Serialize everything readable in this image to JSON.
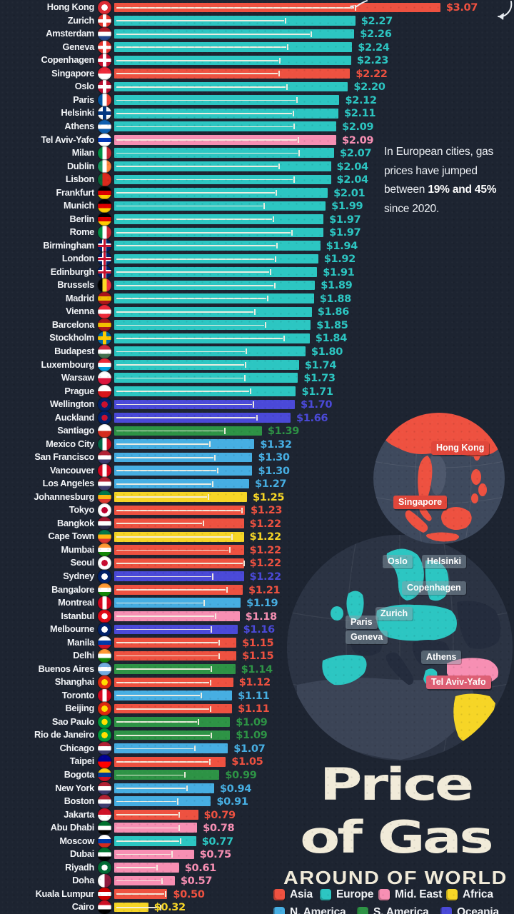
{
  "title": {
    "line1": "Price",
    "line2": "of Gas",
    "subtitle": "AROUND OF WORLD"
  },
  "note": {
    "normal1": "In European cities, gas prices have jumped between ",
    "bold1": "19% and 45%",
    "normal2": " since 2020."
  },
  "regions": {
    "Asia": "#ee5140",
    "Europe": "#2cc6c2",
    "Mid. East": "#f78fb3",
    "Africa": "#f6d526",
    "N. America": "#46aee2",
    "S. America": "#2d9345",
    "Oceania": "#4a49d8"
  },
  "legend": {
    "rows": [
      [
        "Asia",
        "Europe",
        "Mid. East",
        "Africa"
      ],
      [
        "N. America",
        "S. America",
        "Oceania"
      ]
    ]
  },
  "maps": {
    "asia": {
      "labels": {
        "hong_kong": "Hong Kong",
        "singapore": "Singapore"
      }
    },
    "europe": {
      "labels": {
        "oslo": "Oslo",
        "helsinki": "Helsinki",
        "copenhagen": "Copenhagen",
        "zurich": "Zurich",
        "paris": "Paris",
        "geneva": "Geneva",
        "athens": "Athens",
        "tel_aviv": "Tel Aviv-Yafo"
      }
    }
  },
  "chart_data": {
    "type": "bar",
    "orientation": "horizontal",
    "title": "Price of Gas Around of World",
    "currency_prefix": "$",
    "value_range": [
      0,
      3.07
    ],
    "cities": [
      {
        "n": "Hong Kong",
        "v": 3.07,
        "r": "Asia",
        "w": 0.74,
        "f": {
          "d": "dot",
          "c": [
            "#de2a33",
            "#ffffff"
          ]
        }
      },
      {
        "n": "Zurich",
        "v": 2.27,
        "r": "Europe",
        "w": 0.71,
        "f": {
          "d": "cross",
          "c": [
            "#e8352e",
            "#ffffff"
          ]
        }
      },
      {
        "n": "Amsterdam",
        "v": 2.26,
        "r": "Europe",
        "w": 0.82,
        "f": {
          "d": "h",
          "c": [
            "#ae1c28",
            "#ffffff",
            "#21468b"
          ]
        }
      },
      {
        "n": "Geneva",
        "v": 2.24,
        "r": "Europe",
        "w": 0.73,
        "f": {
          "d": "cross",
          "c": [
            "#e8352e",
            "#ffffff"
          ]
        }
      },
      {
        "n": "Copenhagen",
        "v": 2.23,
        "r": "Europe",
        "w": 0.7,
        "f": {
          "d": "cross",
          "c": [
            "#c8102e",
            "#ffffff"
          ]
        }
      },
      {
        "n": "Singapore",
        "v": 2.22,
        "r": "Asia",
        "w": 0.7,
        "f": {
          "d": "h",
          "c": [
            "#ed2939",
            "#ffffff"
          ]
        }
      },
      {
        "n": "Oslo",
        "v": 2.2,
        "r": "Europe",
        "w": 0.74,
        "f": {
          "d": "cross",
          "c": [
            "#ba0c2f",
            "#ffffff"
          ]
        }
      },
      {
        "n": "Paris",
        "v": 2.12,
        "r": "Europe",
        "w": 0.81,
        "f": {
          "d": "v",
          "c": [
            "#0055a4",
            "#ffffff",
            "#ef4135"
          ]
        }
      },
      {
        "n": "Helsinki",
        "v": 2.11,
        "r": "Europe",
        "w": 0.8,
        "f": {
          "d": "cross",
          "c": [
            "#ffffff",
            "#003580"
          ]
        }
      },
      {
        "n": "Athens",
        "v": 2.09,
        "r": "Europe",
        "w": 0.81,
        "f": {
          "d": "h",
          "c": [
            "#0d5eaf",
            "#ffffff",
            "#0d5eaf"
          ]
        }
      },
      {
        "n": "Tel Aviv-Yafo",
        "v": 2.09,
        "r": "Mid. East",
        "w": 0.83,
        "f": {
          "d": "h",
          "c": [
            "#ffffff",
            "#0038b8",
            "#ffffff"
          ]
        }
      },
      {
        "n": "Milan",
        "v": 2.07,
        "r": "Europe",
        "w": 0.84,
        "f": {
          "d": "v",
          "c": [
            "#009246",
            "#ffffff",
            "#ce2b37"
          ]
        }
      },
      {
        "n": "Dublin",
        "v": 2.04,
        "r": "Europe",
        "w": 0.76,
        "f": {
          "d": "v",
          "c": [
            "#169b62",
            "#ffffff",
            "#ff883e"
          ]
        }
      },
      {
        "n": "Lisbon",
        "v": 2.04,
        "r": "Europe",
        "w": 0.83,
        "f": {
          "d": "v",
          "c": [
            "#046a38",
            "#da291c",
            "#da291c"
          ]
        }
      },
      {
        "n": "Frankfurt",
        "v": 2.01,
        "r": "Europe",
        "w": 0.76,
        "f": {
          "d": "h",
          "c": [
            "#000000",
            "#dd0000",
            "#ffce00"
          ]
        }
      },
      {
        "n": "Munich",
        "v": 1.99,
        "r": "Europe",
        "w": 0.71,
        "f": {
          "d": "h",
          "c": [
            "#000000",
            "#dd0000",
            "#ffce00"
          ]
        }
      },
      {
        "n": "Berlin",
        "v": 1.97,
        "r": "Europe",
        "w": 0.76,
        "f": {
          "d": "h",
          "c": [
            "#000000",
            "#dd0000",
            "#ffce00"
          ]
        }
      },
      {
        "n": "Rome",
        "v": 1.97,
        "r": "Europe",
        "w": 0.85,
        "f": {
          "d": "v",
          "c": [
            "#009246",
            "#ffffff",
            "#ce2b37"
          ]
        }
      },
      {
        "n": "Birmingham",
        "v": 1.94,
        "r": "Europe",
        "w": 0.79,
        "f": {
          "d": "uk",
          "c": [
            "#012169",
            "#c8102e"
          ]
        }
      },
      {
        "n": "London",
        "v": 1.92,
        "r": "Europe",
        "w": 0.79,
        "f": {
          "d": "uk",
          "c": [
            "#012169",
            "#c8102e"
          ]
        }
      },
      {
        "n": "Edinburgh",
        "v": 1.91,
        "r": "Europe",
        "w": 0.77,
        "f": {
          "d": "uk",
          "c": [
            "#012169",
            "#c8102e"
          ]
        }
      },
      {
        "n": "Brussels",
        "v": 1.89,
        "r": "Europe",
        "w": 0.8,
        "f": {
          "d": "v",
          "c": [
            "#000000",
            "#fdda25",
            "#ef3340"
          ]
        }
      },
      {
        "n": "Madrid",
        "v": 1.88,
        "r": "Europe",
        "w": 0.77,
        "f": {
          "d": "h",
          "c": [
            "#aa151b",
            "#f1bf00",
            "#aa151b"
          ]
        }
      },
      {
        "n": "Vienna",
        "v": 1.86,
        "r": "Europe",
        "w": 0.71,
        "f": {
          "d": "h",
          "c": [
            "#ed2939",
            "#ffffff",
            "#ed2939"
          ]
        }
      },
      {
        "n": "Barcelona",
        "v": 1.85,
        "r": "Europe",
        "w": 0.77,
        "f": {
          "d": "h",
          "c": [
            "#aa151b",
            "#f1bf00",
            "#aa151b"
          ]
        }
      },
      {
        "n": "Stockholm",
        "v": 1.84,
        "r": "Europe",
        "w": 0.87,
        "f": {
          "d": "cross",
          "c": [
            "#006aa7",
            "#fecc02"
          ]
        }
      },
      {
        "n": "Budapest",
        "v": 1.8,
        "r": "Europe",
        "w": 0.69,
        "f": {
          "d": "h",
          "c": [
            "#cd2a3e",
            "#ffffff",
            "#436f4d"
          ]
        }
      },
      {
        "n": "Luxembourg",
        "v": 1.74,
        "r": "Europe",
        "w": 0.71,
        "f": {
          "d": "h",
          "c": [
            "#ed2939",
            "#ffffff",
            "#00a1de"
          ]
        }
      },
      {
        "n": "Warsaw",
        "v": 1.73,
        "r": "Europe",
        "w": 0.71,
        "f": {
          "d": "h",
          "c": [
            "#ffffff",
            "#dc143c"
          ]
        }
      },
      {
        "n": "Prague",
        "v": 1.71,
        "r": "Europe",
        "w": 0.75,
        "f": {
          "d": "h",
          "c": [
            "#ffffff",
            "#d7141a"
          ]
        }
      },
      {
        "n": "Wellington",
        "v": 1.7,
        "r": "Oceania",
        "w": 0.77,
        "f": {
          "d": "dot",
          "c": [
            "#012169",
            "#c8102e"
          ]
        }
      },
      {
        "n": "Auckland",
        "v": 1.66,
        "r": "Oceania",
        "w": 0.81,
        "f": {
          "d": "dot",
          "c": [
            "#012169",
            "#c8102e"
          ]
        }
      },
      {
        "n": "Santiago",
        "v": 1.39,
        "r": "S. America",
        "w": 0.75,
        "f": {
          "d": "h",
          "c": [
            "#ffffff",
            "#d52b1e"
          ]
        }
      },
      {
        "n": "Mexico City",
        "v": 1.32,
        "r": "N. America",
        "w": 0.68,
        "f": {
          "d": "v",
          "c": [
            "#006847",
            "#ffffff",
            "#ce1126"
          ]
        }
      },
      {
        "n": "San Francisco",
        "v": 1.3,
        "r": "N. America",
        "w": 0.73,
        "f": {
          "d": "h",
          "c": [
            "#b22234",
            "#ffffff",
            "#3c3b6e"
          ]
        }
      },
      {
        "n": "Vancouver",
        "v": 1.3,
        "r": "N. America",
        "w": 0.75,
        "f": {
          "d": "v",
          "c": [
            "#d80621",
            "#ffffff",
            "#d80621"
          ]
        }
      },
      {
        "n": "Los Angeles",
        "v": 1.27,
        "r": "N. America",
        "w": 0.73,
        "f": {
          "d": "h",
          "c": [
            "#b22234",
            "#ffffff",
            "#3c3b6e"
          ]
        }
      },
      {
        "n": "Johannesburg",
        "v": 1.25,
        "r": "Africa",
        "w": 0.71,
        "f": {
          "d": "h",
          "c": [
            "#007749",
            "#ffb612",
            "#de3831"
          ]
        }
      },
      {
        "n": "Tokyo",
        "v": 1.23,
        "r": "Asia",
        "w": 0.98,
        "f": {
          "d": "dot",
          "c": [
            "#ffffff",
            "#bc002d"
          ]
        }
      },
      {
        "n": "Bangkok",
        "v": 1.22,
        "r": "Asia",
        "w": 0.69,
        "f": {
          "d": "h",
          "c": [
            "#a51931",
            "#ffffff",
            "#2d2a4a"
          ]
        }
      },
      {
        "n": "Cape Town",
        "v": 1.22,
        "r": "Africa",
        "w": 0.91,
        "f": {
          "d": "h",
          "c": [
            "#007749",
            "#ffb612",
            "#de3831"
          ]
        }
      },
      {
        "n": "Mumbai",
        "v": 1.22,
        "r": "Asia",
        "w": 0.89,
        "f": {
          "d": "h",
          "c": [
            "#ff9933",
            "#ffffff",
            "#138808"
          ]
        }
      },
      {
        "n": "Seoul",
        "v": 1.22,
        "r": "Asia",
        "w": 1.0,
        "f": {
          "d": "dot",
          "c": [
            "#ffffff",
            "#c60c30"
          ]
        }
      },
      {
        "n": "Sydney",
        "v": 1.22,
        "r": "Oceania",
        "w": 0.76,
        "f": {
          "d": "dot",
          "c": [
            "#012169",
            "#ffffff"
          ]
        }
      },
      {
        "n": "Bangalore",
        "v": 1.21,
        "r": "Asia",
        "w": 0.88,
        "f": {
          "d": "h",
          "c": [
            "#ff9933",
            "#ffffff",
            "#138808"
          ]
        }
      },
      {
        "n": "Montreal",
        "v": 1.19,
        "r": "N. America",
        "w": 0.71,
        "f": {
          "d": "v",
          "c": [
            "#d80621",
            "#ffffff",
            "#d80621"
          ]
        }
      },
      {
        "n": "Istanbul",
        "v": 1.18,
        "r": "Mid. East",
        "w": 0.81,
        "f": {
          "d": "dot",
          "c": [
            "#e30a17",
            "#ffffff"
          ]
        }
      },
      {
        "n": "Melbourne",
        "v": 1.16,
        "r": "Oceania",
        "w": 0.79,
        "f": {
          "d": "dot",
          "c": [
            "#012169",
            "#ffffff"
          ]
        }
      },
      {
        "n": "Manila",
        "v": 1.15,
        "r": "Asia",
        "w": 0.86,
        "f": {
          "d": "h",
          "c": [
            "#ffffff",
            "#0038a8",
            "#ce1126"
          ]
        }
      },
      {
        "n": "Delhi",
        "v": 1.15,
        "r": "Asia",
        "w": 0.86,
        "f": {
          "d": "h",
          "c": [
            "#ff9933",
            "#ffffff",
            "#138808"
          ]
        }
      },
      {
        "n": "Buenos Aires",
        "v": 1.14,
        "r": "S. America",
        "w": 0.8,
        "f": {
          "d": "h",
          "c": [
            "#74acdf",
            "#ffffff",
            "#74acdf"
          ]
        }
      },
      {
        "n": "Shanghai",
        "v": 1.12,
        "r": "Asia",
        "w": 0.81,
        "f": {
          "d": "dot",
          "c": [
            "#de2910",
            "#ffde00"
          ]
        }
      },
      {
        "n": "Toronto",
        "v": 1.11,
        "r": "N. America",
        "w": 0.74,
        "f": {
          "d": "v",
          "c": [
            "#d80621",
            "#ffffff",
            "#d80621"
          ]
        }
      },
      {
        "n": "Beijing",
        "v": 1.11,
        "r": "Asia",
        "w": 0.82,
        "f": {
          "d": "dot",
          "c": [
            "#de2910",
            "#ffde00"
          ]
        }
      },
      {
        "n": "Sao Paulo",
        "v": 1.09,
        "r": "S. America",
        "w": 0.73,
        "f": {
          "d": "dot",
          "c": [
            "#009c3b",
            "#ffdf00"
          ]
        }
      },
      {
        "n": "Rio de Janeiro",
        "v": 1.09,
        "r": "S. America",
        "w": 0.84,
        "f": {
          "d": "dot",
          "c": [
            "#009c3b",
            "#ffdf00"
          ]
        }
      },
      {
        "n": "Chicago",
        "v": 1.07,
        "r": "N. America",
        "w": 0.71,
        "f": {
          "d": "h",
          "c": [
            "#b22234",
            "#ffffff",
            "#3c3b6e"
          ]
        }
      },
      {
        "n": "Taipei",
        "v": 1.05,
        "r": "Asia",
        "w": 0.86,
        "f": {
          "d": "h",
          "c": [
            "#000095",
            "#fe0000"
          ]
        }
      },
      {
        "n": "Bogota",
        "v": 0.99,
        "r": "S. America",
        "w": 0.67,
        "f": {
          "d": "h",
          "c": [
            "#fcd116",
            "#003893",
            "#ce1126"
          ]
        }
      },
      {
        "n": "New York",
        "v": 0.94,
        "r": "N. America",
        "w": 0.73,
        "f": {
          "d": "h",
          "c": [
            "#b22234",
            "#ffffff",
            "#3c3b6e"
          ]
        }
      },
      {
        "n": "Boston",
        "v": 0.91,
        "r": "N. America",
        "w": 0.66,
        "f": {
          "d": "h",
          "c": [
            "#b22234",
            "#ffffff",
            "#3c3b6e"
          ]
        }
      },
      {
        "n": "Jakarta",
        "v": 0.79,
        "r": "Asia",
        "w": 0.77,
        "f": {
          "d": "h",
          "c": [
            "#ce1126",
            "#ffffff"
          ]
        }
      },
      {
        "n": "Abu Dhabi",
        "v": 0.78,
        "r": "Mid. East",
        "w": 0.78,
        "f": {
          "d": "h",
          "c": [
            "#00732f",
            "#ffffff",
            "#000000"
          ]
        }
      },
      {
        "n": "Moscow",
        "v": 0.77,
        "r": "Europe",
        "w": 0.81,
        "f": {
          "d": "h",
          "c": [
            "#ffffff",
            "#0039a6",
            "#d52b1e"
          ]
        }
      },
      {
        "n": "Dubai",
        "v": 0.75,
        "r": "Mid. East",
        "w": 0.73,
        "f": {
          "d": "h",
          "c": [
            "#00732f",
            "#ffffff",
            "#000000"
          ]
        }
      },
      {
        "n": "Riyadh",
        "v": 0.61,
        "r": "Mid. East",
        "w": 0.66,
        "f": {
          "d": "dot",
          "c": [
            "#006c35",
            "#ffffff"
          ]
        }
      },
      {
        "n": "Doha",
        "v": 0.57,
        "r": "Mid. East",
        "w": 0.79,
        "f": {
          "d": "v",
          "c": [
            "#ffffff",
            "#8d1b3d"
          ]
        }
      },
      {
        "n": "Kuala Lumpur",
        "v": 0.5,
        "r": "Asia",
        "w": 0.97,
        "f": {
          "d": "h",
          "c": [
            "#cc0001",
            "#ffffff",
            "#cc0001"
          ]
        }
      },
      {
        "n": "Cairo",
        "v": 0.32,
        "r": "Africa",
        "w": 1.37,
        "f": {
          "d": "h",
          "c": [
            "#ce1126",
            "#ffffff",
            "#000000"
          ]
        }
      }
    ]
  }
}
